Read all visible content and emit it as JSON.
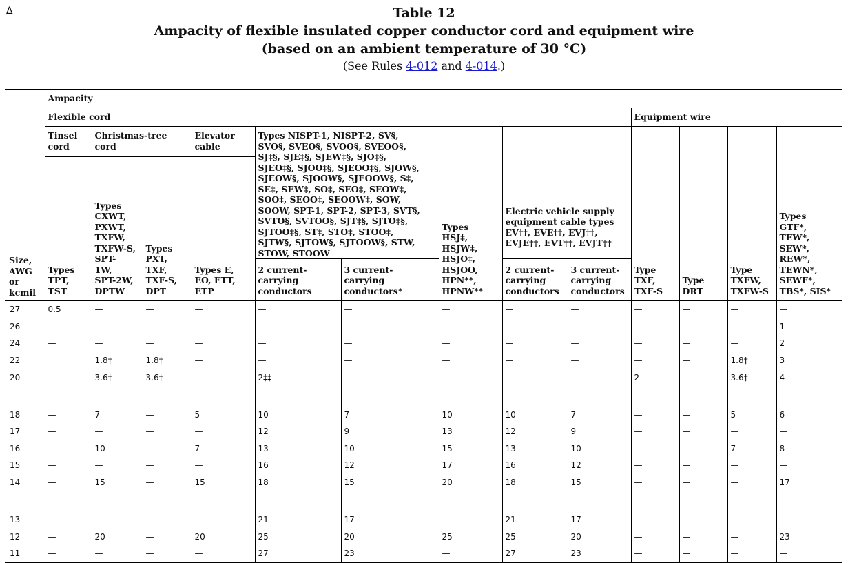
{
  "marker": "Δ",
  "caption": {
    "table_no": "Table 12",
    "title_line1": "Ampacity of flexible insulated copper conductor cord and equipment wire",
    "title_line2": "(based on an ambient temperature of 30 °C)",
    "see_prefix": "(See Rules ",
    "rule1": "4-012",
    "and": " and ",
    "rule2": "4-014",
    "see_suffix": ".)"
  },
  "headers": {
    "ampacity": "Ampacity",
    "flexible_cord": "Flexible cord",
    "equipment_wire": "Equipment wire",
    "size": "Size,\nAWG\nor\nkcmil",
    "tinsel": "Tinsel\ncord",
    "xmas": "Christmas-tree\ncord",
    "elevator": "Elevator\ncable",
    "nispt": "Types NISPT-1, NISPT-2, SV§, SVO§, SVEO§, SVOO§, SVEOO§, SJ‡§, SJE‡§, SJEW‡§, SJO‡§, SJEO‡§, SJOO‡§, SJEOO‡§, SJOW§, SJEOW§, SJOOW§, SJEOOW§, S‡, SE‡, SEW‡, SO‡, SEO‡, SEOW‡, SOO‡, SEOO‡, SEOOW‡, SOW, SOOW, SPT-1, SPT-2, SPT-3, SVT§, SVTO§, SVTOO§, SJT‡§, SJTO‡§, SJTOO‡§, ST‡, STO‡, STOO‡, SJTW§, SJTOW§, SJTOOW§, STW, STOW, STOOW",
    "hsj": "Types\nHSJ‡,\nHSJW‡,\nHSJO‡,\nHSJOO,\nHPN**,\nHPNW**",
    "ev": "Electric vehicle supply equipment cable types EV††, EVE††, EVJ††, EVJE††, EVT††, EVJT††",
    "gtf": "Types\nGTF*,\nTEW*,\nSEW*,\nREW*,\nTEWN*,\nSEWF*,\nTBS*, SIS*",
    "tpt": "Types\nTPT,\nTST",
    "cxwt": "Types\nCXWT,\nPXWT,\nTXFW,\nTXFW-S,\nSPT-\n1W,\nSPT-2W,\nDPTW",
    "pxt": "Types\nPXT,\nTXF,\nTXF-S,\nDPT",
    "eo": "Types E,\nEO, ETT,\nETP",
    "nispt_2c": "2 current-\ncarrying\nconductors",
    "nispt_3c": "3 current-\ncarrying\nconductors*",
    "ev_2c": "2 current-\ncarrying\nconductors",
    "ev_3c": "3 current-\ncarrying\nconductors",
    "txf": "Type\nTXF,\nTXF-S",
    "drt": "Type\nDRT",
    "txfw": "Type\nTXFW,\nTXFW-S"
  },
  "rows": [
    {
      "size": "27",
      "c": [
        "0.5",
        "—",
        "—",
        "—",
        "—",
        "—",
        "—",
        "—",
        "—",
        "—",
        "—",
        "—",
        "—"
      ]
    },
    {
      "size": "26",
      "c": [
        "—",
        "—",
        "—",
        "—",
        "—",
        "—",
        "—",
        "—",
        "—",
        "—",
        "—",
        "—",
        "1"
      ]
    },
    {
      "size": "24",
      "c": [
        "—",
        "—",
        "—",
        "—",
        "—",
        "—",
        "—",
        "—",
        "—",
        "—",
        "—",
        "—",
        "2"
      ]
    },
    {
      "size": "22",
      "c": [
        "",
        "1.8†",
        "1.8†",
        "—",
        "—",
        "—",
        "—",
        "—",
        "—",
        "—",
        "—",
        "1.8†",
        "3"
      ]
    },
    {
      "size": "20",
      "c": [
        "—",
        "3.6†",
        "3.6†",
        "—",
        "2‡‡",
        "—",
        "—",
        "—",
        "—",
        "2",
        "—",
        "3.6†",
        "4"
      ]
    },
    {
      "size": "18",
      "c": [
        "—",
        "7",
        "—",
        "5",
        "10",
        "7",
        "10",
        "10",
        "7",
        "—",
        "—",
        "5",
        "6"
      ]
    },
    {
      "size": "17",
      "c": [
        "—",
        "—",
        "—",
        "—",
        "12",
        "9",
        "13",
        "12",
        "9",
        "—",
        "—",
        "—",
        "—"
      ]
    },
    {
      "size": "16",
      "c": [
        "—",
        "10",
        "—",
        "7",
        "13",
        "10",
        "15",
        "13",
        "10",
        "—",
        "—",
        "7",
        "8"
      ]
    },
    {
      "size": "15",
      "c": [
        "—",
        "—",
        "—",
        "—",
        "16",
        "12",
        "17",
        "16",
        "12",
        "—",
        "—",
        "—",
        "—"
      ]
    },
    {
      "size": "14",
      "c": [
        "—",
        "15",
        "—",
        "15",
        "18",
        "15",
        "20",
        "18",
        "15",
        "—",
        "—",
        "—",
        "17"
      ]
    },
    {
      "size": "13",
      "c": [
        "—",
        "—",
        "—",
        "—",
        "21",
        "17",
        "—",
        "21",
        "17",
        "—",
        "—",
        "—",
        "—"
      ]
    },
    {
      "size": "12",
      "c": [
        "—",
        "20",
        "—",
        "20",
        "25",
        "20",
        "25",
        "25",
        "20",
        "—",
        "—",
        "—",
        "23"
      ]
    },
    {
      "size": "11",
      "c": [
        "—",
        "—",
        "—",
        "—",
        "27",
        "23",
        "—",
        "27",
        "23",
        "—",
        "—",
        "—",
        "—"
      ]
    }
  ]
}
